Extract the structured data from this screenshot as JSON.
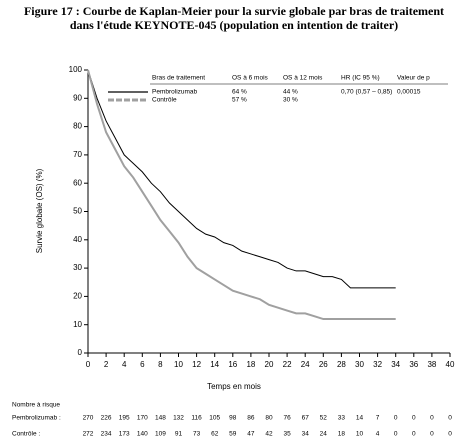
{
  "chart_data": {
    "type": "line",
    "title": [
      "Figure 17 : Courbe de Kaplan-Meier pour la survie globale par bras de traitement",
      "dans l'étude KEYNOTE-045 (population en intention de traiter)"
    ],
    "x_label": "Temps en mois",
    "y_label": "Survie globale (OS) (%)",
    "xlim": [
      0,
      40
    ],
    "xticks": [
      0,
      2,
      4,
      6,
      8,
      10,
      12,
      14,
      16,
      18,
      20,
      22,
      24,
      26,
      28,
      30,
      32,
      34,
      36,
      38,
      40
    ],
    "ylim": [
      0,
      100
    ],
    "yticks": [
      0,
      10,
      20,
      30,
      40,
      50,
      60,
      70,
      80,
      90,
      100
    ],
    "series": [
      {
        "name": "Pembrolizumab",
        "color": "#000000",
        "x": [
          0,
          1,
          2,
          3,
          4,
          5,
          6,
          7,
          8,
          9,
          10,
          11,
          12,
          13,
          14,
          15,
          16,
          17,
          18,
          19,
          20,
          21,
          22,
          23,
          24,
          25,
          26,
          27,
          28,
          29,
          30,
          31,
          32,
          33,
          34
        ],
        "values": [
          100,
          90,
          82,
          76,
          70,
          67,
          64,
          60,
          57,
          53,
          50,
          47,
          44,
          42,
          41,
          39,
          38,
          36,
          35,
          34,
          33,
          32,
          30,
          29,
          29,
          28,
          27,
          27,
          26,
          23,
          23,
          23,
          23,
          23,
          23
        ]
      },
      {
        "name": "Contrôle",
        "color": "#a0a0a0",
        "x": [
          0,
          1,
          2,
          3,
          4,
          5,
          6,
          7,
          8,
          9,
          10,
          11,
          12,
          13,
          14,
          15,
          16,
          17,
          18,
          19,
          20,
          21,
          22,
          23,
          24,
          25,
          26,
          27,
          28,
          29,
          30,
          31,
          32,
          33,
          34
        ],
        "values": [
          100,
          88,
          78,
          72,
          66,
          62,
          57,
          52,
          47,
          43,
          39,
          34,
          30,
          28,
          26,
          24,
          22,
          21,
          20,
          19,
          17,
          16,
          15,
          14,
          14,
          13,
          12,
          12,
          12,
          12,
          12,
          12,
          12,
          12,
          12
        ]
      }
    ],
    "legend_table": {
      "headers": [
        "Bras de traitement",
        "OS à 6 mois",
        "OS à 12 mois",
        "HR (IC 95 %)",
        "Valeur de p"
      ],
      "rows": [
        [
          "64 %",
          "44 %",
          "0,70 (0,57 – 0,85)",
          "0,00015"
        ],
        [
          "57 %",
          "30 %"
        ]
      ]
    },
    "risk_table": {
      "title": "Nombre à risque",
      "rows": [
        {
          "name": "Pembrolizumab :",
          "values": [
            270,
            226,
            195,
            170,
            148,
            132,
            116,
            105,
            98,
            86,
            80,
            76,
            67,
            52,
            33,
            14,
            7,
            0,
            0,
            0,
            0
          ]
        },
        {
          "name": "Contrôle :",
          "values": [
            272,
            234,
            173,
            140,
            109,
            91,
            73,
            62,
            59,
            47,
            42,
            35,
            34,
            24,
            18,
            10,
            4,
            0,
            0,
            0,
            0
          ]
        }
      ]
    }
  }
}
